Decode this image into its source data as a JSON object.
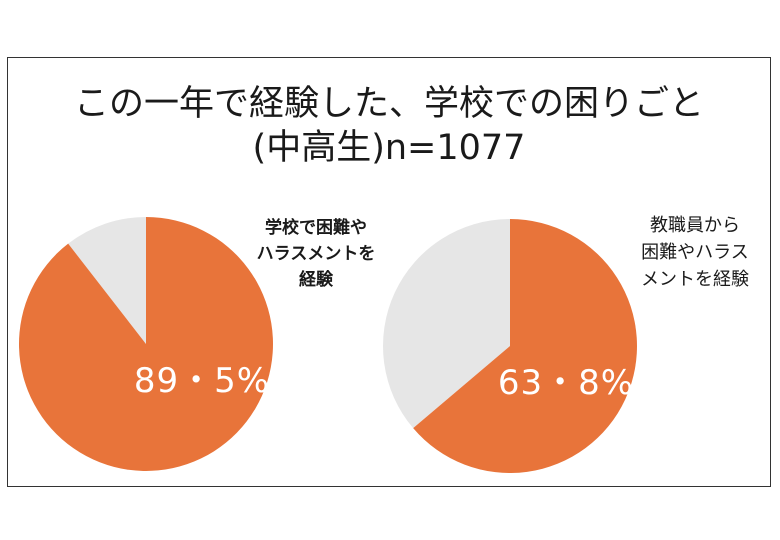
{
  "title_lines": [
    "この一年で経験した、学校での困りごと",
    "(中高生)n=1077"
  ],
  "colors": {
    "primary": "#e8743a",
    "remainder": "#e6e6e6"
  },
  "chart_data": [
    {
      "type": "pie",
      "label_lines": [
        "学校で困難や",
        "ハラスメントを",
        "経験"
      ],
      "value_label": "89・5%",
      "values": [
        89.5,
        10.5
      ]
    },
    {
      "type": "pie",
      "label_lines": [
        "教職員から",
        "困難やハラス",
        "メントを経験"
      ],
      "value_label": "63・8%",
      "values": [
        63.8,
        36.2
      ]
    }
  ]
}
